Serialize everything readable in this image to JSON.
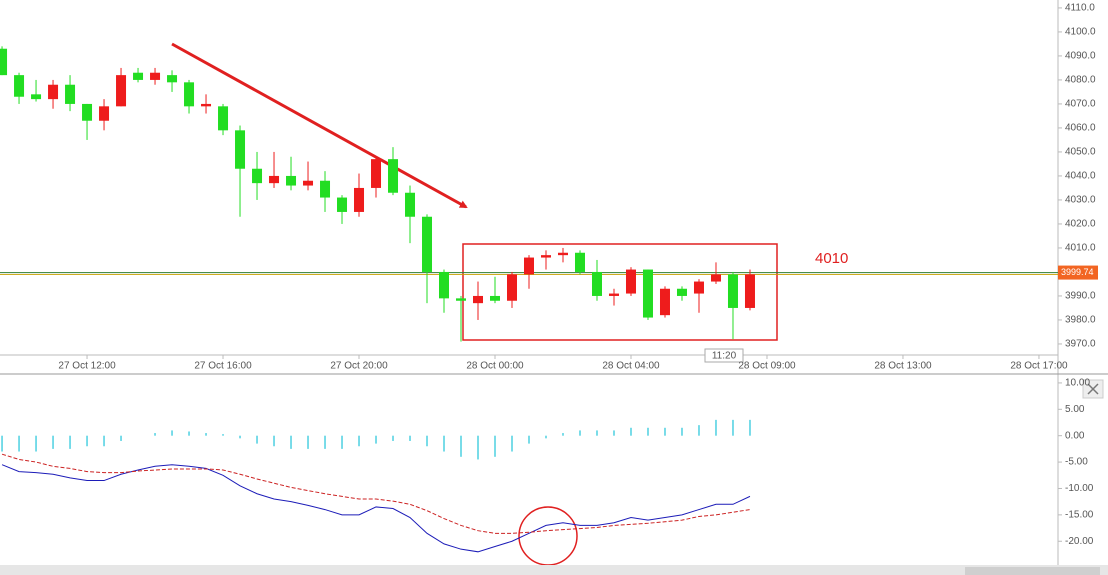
{
  "chart_data": [
    {
      "type": "candlestick",
      "up_color": "#ee1c1c",
      "down_color": "#22dd22",
      "open": [
        4093,
        4082,
        4074,
        4072,
        4078,
        4070,
        4063,
        4069,
        4083,
        4080,
        4082,
        4079,
        4069,
        4069,
        4059,
        4043,
        4037,
        4040,
        4036,
        4038,
        4031,
        4025,
        4035,
        4047,
        4033,
        4023,
        4000,
        3989,
        3987,
        3990,
        3988,
        3999,
        4006,
        4007,
        4008,
        4000,
        3990,
        3991,
        4001,
        3982,
        3993,
        3991,
        3996,
        3999,
        3985
      ],
      "high": [
        4094,
        4083,
        4080,
        4080,
        4082,
        4070,
        4072,
        4085,
        4085,
        4085,
        4084,
        4080,
        4074,
        4070,
        4061,
        4050,
        4050,
        4048,
        4046,
        4042,
        4032,
        4041,
        4048,
        4052,
        4036,
        4024,
        4001,
        3990,
        3996,
        3998,
        4000,
        4007,
        4009,
        4010,
        4009,
        4005,
        3993,
        4002,
        4001,
        3994,
        3994,
        3997,
        4004,
        4000,
        4001
      ],
      "low": [
        4082,
        4070,
        4071,
        4068,
        4067,
        4055,
        4059,
        4069,
        4079,
        4078,
        4075,
        4066,
        4066,
        4057,
        4023,
        4030,
        4035,
        4034,
        4034,
        4025,
        4020,
        4023,
        4031,
        4032,
        4012,
        3987,
        3983,
        3971,
        3980,
        3987,
        3985,
        3993,
        4001,
        4004,
        3999,
        3988,
        3986,
        3990,
        3980,
        3981,
        3988,
        3983,
        3995,
        3972,
        3984
      ],
      "close": [
        4082,
        4073,
        4072,
        4078,
        4070,
        4063,
        4069,
        4082,
        4080,
        4083,
        4079,
        4069,
        4070,
        4059,
        4043,
        4037,
        4040,
        4036,
        4038,
        4031,
        4025,
        4035,
        4047,
        4033,
        4023,
        4000,
        3989,
        3988,
        3990,
        3988,
        3999,
        4006,
        4007,
        4008,
        4000,
        3990,
        3991,
        4001,
        3981,
        3993,
        3990,
        3996,
        3999,
        3985,
        3999
      ],
      "xlim": [
        -0.12,
        62.12
      ],
      "xticks": [
        {
          "value": 5,
          "label": "27 Oct 12:00"
        },
        {
          "value": 13,
          "label": "27 Oct 16:00"
        },
        {
          "value": 21,
          "label": "27 Oct 20:00"
        },
        {
          "value": 29,
          "label": "28 Oct 00:00"
        },
        {
          "value": 37,
          "label": "28 Oct 04:00"
        },
        {
          "value": 45,
          "label": "28 Oct 09:00"
        },
        {
          "value": 53,
          "label": "28 Oct 13:00"
        },
        {
          "value": 61,
          "label": "28 Oct 17:00"
        }
      ],
      "ylim": [
        3965.4,
        4113.3
      ],
      "yticks": [
        {
          "value": 4110,
          "label": "4110.0"
        },
        {
          "value": 4100,
          "label": "4100.0"
        },
        {
          "value": 4090,
          "label": "4090.0"
        },
        {
          "value": 4080,
          "label": "4080.0"
        },
        {
          "value": 4070,
          "label": "4070.0"
        },
        {
          "value": 4060,
          "label": "4060.0"
        },
        {
          "value": 4050,
          "label": "4050.0"
        },
        {
          "value": 4040,
          "label": "4040.0"
        },
        {
          "value": 4030,
          "label": "4030.0"
        },
        {
          "value": 4020,
          "label": "4020.0"
        },
        {
          "value": 4010,
          "label": "4010.0"
        },
        {
          "value": 3990,
          "label": "3990.0"
        },
        {
          "value": 3980,
          "label": "3980.0"
        },
        {
          "value": 3970,
          "label": "3970.0"
        }
      ],
      "last_price": 3999.74,
      "crosshair_label": "11:20",
      "annotation": "4010"
    },
    {
      "type": "macd",
      "series": [
        {
          "color": "#4dd0e1",
          "values": [
            -3,
            -3,
            -3,
            -2.5,
            -2.5,
            -2,
            -2,
            -1,
            0,
            0.5,
            1,
            0.8,
            0.5,
            0.3,
            -0.5,
            -1.5,
            -2,
            -2.5,
            -2.5,
            -2.5,
            -2.5,
            -2,
            -1.5,
            -1,
            -1,
            -2,
            -3,
            -4,
            -4.5,
            -4,
            -3,
            -1.5,
            -0.5,
            0.5,
            1,
            1,
            1,
            1.5,
            1.5,
            1.5,
            1.5,
            2,
            3,
            3,
            3
          ]
        },
        {
          "color": "#1c1cb8",
          "values": [
            -5.5,
            -6.8,
            -7,
            -7.3,
            -8,
            -8.5,
            -8.5,
            -7.3,
            -6.5,
            -5.8,
            -5.5,
            -5.8,
            -6.2,
            -7.5,
            -9.5,
            -11,
            -12,
            -12.5,
            -13.2,
            -14,
            -15,
            -15,
            -13.5,
            -13.8,
            -15.5,
            -18.5,
            -20.5,
            -21.5,
            -22,
            -21,
            -20,
            -18.5,
            -17,
            -16.5,
            -17,
            -17,
            -16.5,
            -15.5,
            -16,
            -15.5,
            -15,
            -14,
            -13,
            -13,
            -11.5
          ]
        },
        {
          "color": "#cc2222",
          "values": [
            -3.5,
            -4.5,
            -5,
            -5.8,
            -6.2,
            -6.8,
            -7,
            -7,
            -6.7,
            -6.5,
            -6.3,
            -6.3,
            -6.3,
            -6.5,
            -7.3,
            -8.2,
            -9,
            -9.8,
            -10.4,
            -11,
            -11.5,
            -12,
            -12,
            -12.4,
            -13,
            -14.2,
            -15.7,
            -17,
            -18,
            -18.5,
            -18.5,
            -18.3,
            -18,
            -17.8,
            -17.6,
            -17.4,
            -17,
            -16.8,
            -16.6,
            -16.3,
            -16,
            -15.3,
            -15,
            -14.5,
            -14
          ]
        }
      ],
      "xlim": [
        -0.12,
        62.12
      ],
      "ylim": [
        -24.5,
        11.5
      ],
      "yticks": [
        {
          "value": 10,
          "label": "10.00"
        },
        {
          "value": 5,
          "label": "5.00"
        },
        {
          "value": 0,
          "label": "0.00"
        },
        {
          "value": -5,
          "label": "-5.00"
        },
        {
          "value": -10,
          "label": "-10.00"
        },
        {
          "value": -15,
          "label": "-15.00"
        },
        {
          "value": -20,
          "label": "-20.00"
        }
      ]
    }
  ]
}
